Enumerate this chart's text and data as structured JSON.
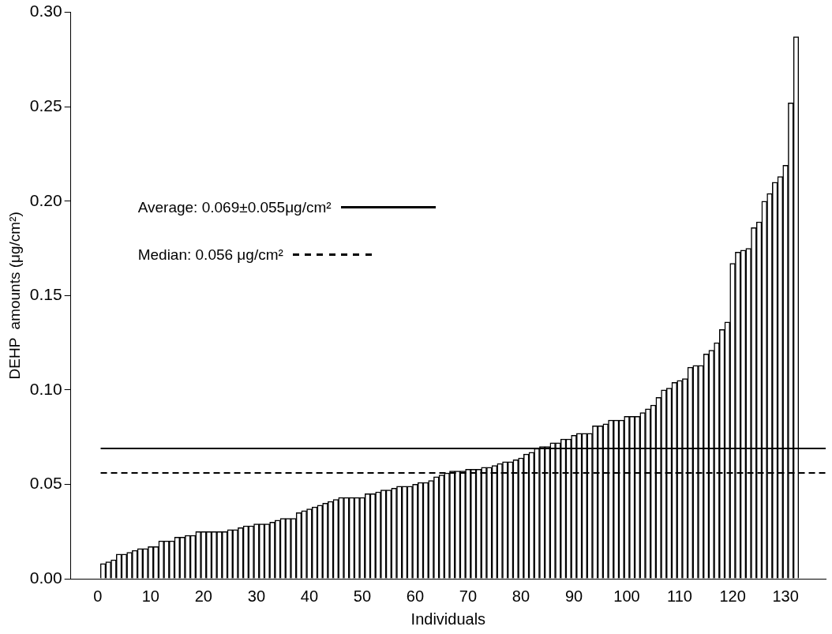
{
  "chart_data": {
    "type": "bar",
    "xlabel": "Individuals",
    "ylabel": "DEHP  amounts (μg/cm²)",
    "color": "#ffffff",
    "x": [
      1,
      2,
      3,
      4,
      5,
      6,
      7,
      8,
      9,
      10,
      11,
      12,
      13,
      14,
      15,
      16,
      17,
      18,
      19,
      20,
      21,
      22,
      23,
      24,
      25,
      26,
      27,
      28,
      29,
      30,
      31,
      32,
      33,
      34,
      35,
      36,
      37,
      38,
      39,
      40,
      41,
      42,
      43,
      44,
      45,
      46,
      47,
      48,
      49,
      50,
      51,
      52,
      53,
      54,
      55,
      56,
      57,
      58,
      59,
      60,
      61,
      62,
      63,
      64,
      65,
      66,
      67,
      68,
      69,
      70,
      71,
      72,
      73,
      74,
      75,
      76,
      77,
      78,
      79,
      80,
      81,
      82,
      83,
      84,
      85,
      86,
      87,
      88,
      89,
      90,
      91,
      92,
      93,
      94,
      95,
      96,
      97,
      98,
      99,
      100,
      101,
      102,
      103,
      104,
      105,
      106,
      107,
      108,
      109,
      110,
      111,
      112,
      113,
      114,
      115,
      116,
      117,
      118,
      119,
      120,
      121,
      122,
      123,
      124,
      125,
      126,
      127,
      128,
      129,
      130,
      131,
      132
    ],
    "values": [
      0.008,
      0.009,
      0.01,
      0.013,
      0.013,
      0.014,
      0.015,
      0.016,
      0.016,
      0.017,
      0.017,
      0.02,
      0.02,
      0.02,
      0.022,
      0.022,
      0.023,
      0.023,
      0.025,
      0.025,
      0.025,
      0.025,
      0.025,
      0.025,
      0.026,
      0.026,
      0.027,
      0.028,
      0.028,
      0.029,
      0.029,
      0.029,
      0.03,
      0.031,
      0.032,
      0.032,
      0.032,
      0.035,
      0.036,
      0.037,
      0.038,
      0.039,
      0.04,
      0.041,
      0.042,
      0.043,
      0.043,
      0.043,
      0.043,
      0.043,
      0.045,
      0.045,
      0.046,
      0.047,
      0.047,
      0.048,
      0.049,
      0.049,
      0.049,
      0.05,
      0.051,
      0.051,
      0.052,
      0.054,
      0.055,
      0.056,
      0.057,
      0.057,
      0.057,
      0.058,
      0.058,
      0.058,
      0.059,
      0.059,
      0.06,
      0.061,
      0.062,
      0.062,
      0.063,
      0.064,
      0.066,
      0.067,
      0.069,
      0.07,
      0.07,
      0.072,
      0.072,
      0.074,
      0.074,
      0.076,
      0.077,
      0.077,
      0.077,
      0.081,
      0.081,
      0.082,
      0.084,
      0.084,
      0.084,
      0.086,
      0.086,
      0.086,
      0.088,
      0.09,
      0.092,
      0.096,
      0.1,
      0.101,
      0.104,
      0.105,
      0.106,
      0.112,
      0.113,
      0.113,
      0.119,
      0.121,
      0.125,
      0.132,
      0.136,
      0.167,
      0.173,
      0.174,
      0.175,
      0.186,
      0.189,
      0.2,
      0.204,
      0.21,
      0.213,
      0.219,
      0.252,
      0.287
    ],
    "xlim": [
      0,
      132.5
    ],
    "xticks": [
      0,
      10,
      20,
      30,
      40,
      50,
      60,
      70,
      80,
      90,
      100,
      110,
      120,
      130
    ],
    "ylim": [
      0,
      0.3
    ],
    "yticks": [
      {
        "value": 0,
        "label": "0.00"
      },
      {
        "value": 0.05,
        "label": "0.05"
      },
      {
        "value": 0.1,
        "label": "0.10"
      },
      {
        "value": 0.15,
        "label": "0.15"
      },
      {
        "value": 0.2,
        "label": "0.20"
      },
      {
        "value": 0.25,
        "label": "0.25"
      },
      {
        "value": 0.3,
        "label": "0.30"
      }
    ],
    "ref_lines": [
      {
        "axis": "y",
        "value": 0.069,
        "label": "Average: 0.069±0.055μg/cm²",
        "color": "#000000",
        "line_style": "solid"
      },
      {
        "axis": "y",
        "value": 0.056,
        "label": "Median: 0.056 μg/cm²",
        "color": "#000000",
        "line_style": "dashed"
      }
    ],
    "grid": false,
    "legend": "top left"
  }
}
